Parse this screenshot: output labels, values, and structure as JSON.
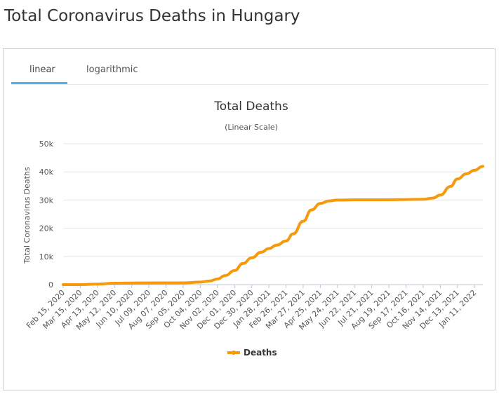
{
  "page": {
    "title": "Total Coronavirus Deaths in Hungary"
  },
  "tabs": [
    {
      "label": "linear",
      "active": true
    },
    {
      "label": "logarithmic",
      "active": false
    }
  ],
  "colors": {
    "series": "#f59a0b",
    "tab_active": "#4fb3e6",
    "grid": "#e6e6e6"
  },
  "chart_data": {
    "type": "line",
    "title": "Total Deaths",
    "subtitle": "(Linear Scale)",
    "ylabel": "Total Coronavirus Deaths",
    "xlabel": "",
    "ylim": [
      0,
      50000
    ],
    "yticks": [
      0,
      10000,
      20000,
      30000,
      40000,
      50000
    ],
    "ytick_labels": [
      "0",
      "10k",
      "20k",
      "30k",
      "40k",
      "50k"
    ],
    "x_tick_labels": [
      "Feb 15, 2020",
      "Mar 15, 2020",
      "Apr 13, 2020",
      "May 12, 2020",
      "Jun 10, 2020",
      "Jul 09, 2020",
      "Aug 07, 2020",
      "Sep 05, 2020",
      "Oct 04, 2020",
      "Nov 02, 2020",
      "Dec 01, 2020",
      "Dec 30, 2020",
      "Jan 28, 2021",
      "Feb 26, 2021",
      "Mar 27, 2021",
      "Apr 25, 2021",
      "May 24, 2021",
      "Jun 22, 2021",
      "Jul 21, 2021",
      "Aug 19, 2021",
      "Sep 17, 2021",
      "Oct 16, 2021",
      "Nov 14, 2021",
      "Dec 13, 2021",
      "Jan 11, 2022"
    ],
    "grid": true,
    "legend": {
      "position": "bottom-center",
      "entries": [
        "Deaths"
      ]
    },
    "series": [
      {
        "name": "Deaths",
        "x": [
          "2020-02-15",
          "2020-03-15",
          "2020-04-13",
          "2020-05-12",
          "2020-06-10",
          "2020-07-09",
          "2020-08-07",
          "2020-09-05",
          "2020-10-04",
          "2020-10-20",
          "2020-11-02",
          "2020-11-15",
          "2020-12-01",
          "2020-12-15",
          "2020-12-30",
          "2021-01-15",
          "2021-01-28",
          "2021-02-10",
          "2021-02-26",
          "2021-03-10",
          "2021-03-27",
          "2021-04-10",
          "2021-04-25",
          "2021-05-10",
          "2021-05-24",
          "2021-06-22",
          "2021-07-21",
          "2021-08-19",
          "2021-09-17",
          "2021-10-16",
          "2021-11-01",
          "2021-11-14",
          "2021-12-01",
          "2021-12-13",
          "2021-12-28",
          "2022-01-11",
          "2022-01-25"
        ],
        "values": [
          0,
          10,
          200,
          500,
          570,
          600,
          610,
          630,
          900,
          1300,
          2000,
          3200,
          5000,
          7500,
          9500,
          11500,
          12800,
          14000,
          15500,
          18000,
          22500,
          26500,
          28800,
          29700,
          30000,
          30100,
          30100,
          30100,
          30200,
          30300,
          30700,
          31800,
          34800,
          37500,
          39300,
          40600,
          42000
        ]
      }
    ]
  }
}
